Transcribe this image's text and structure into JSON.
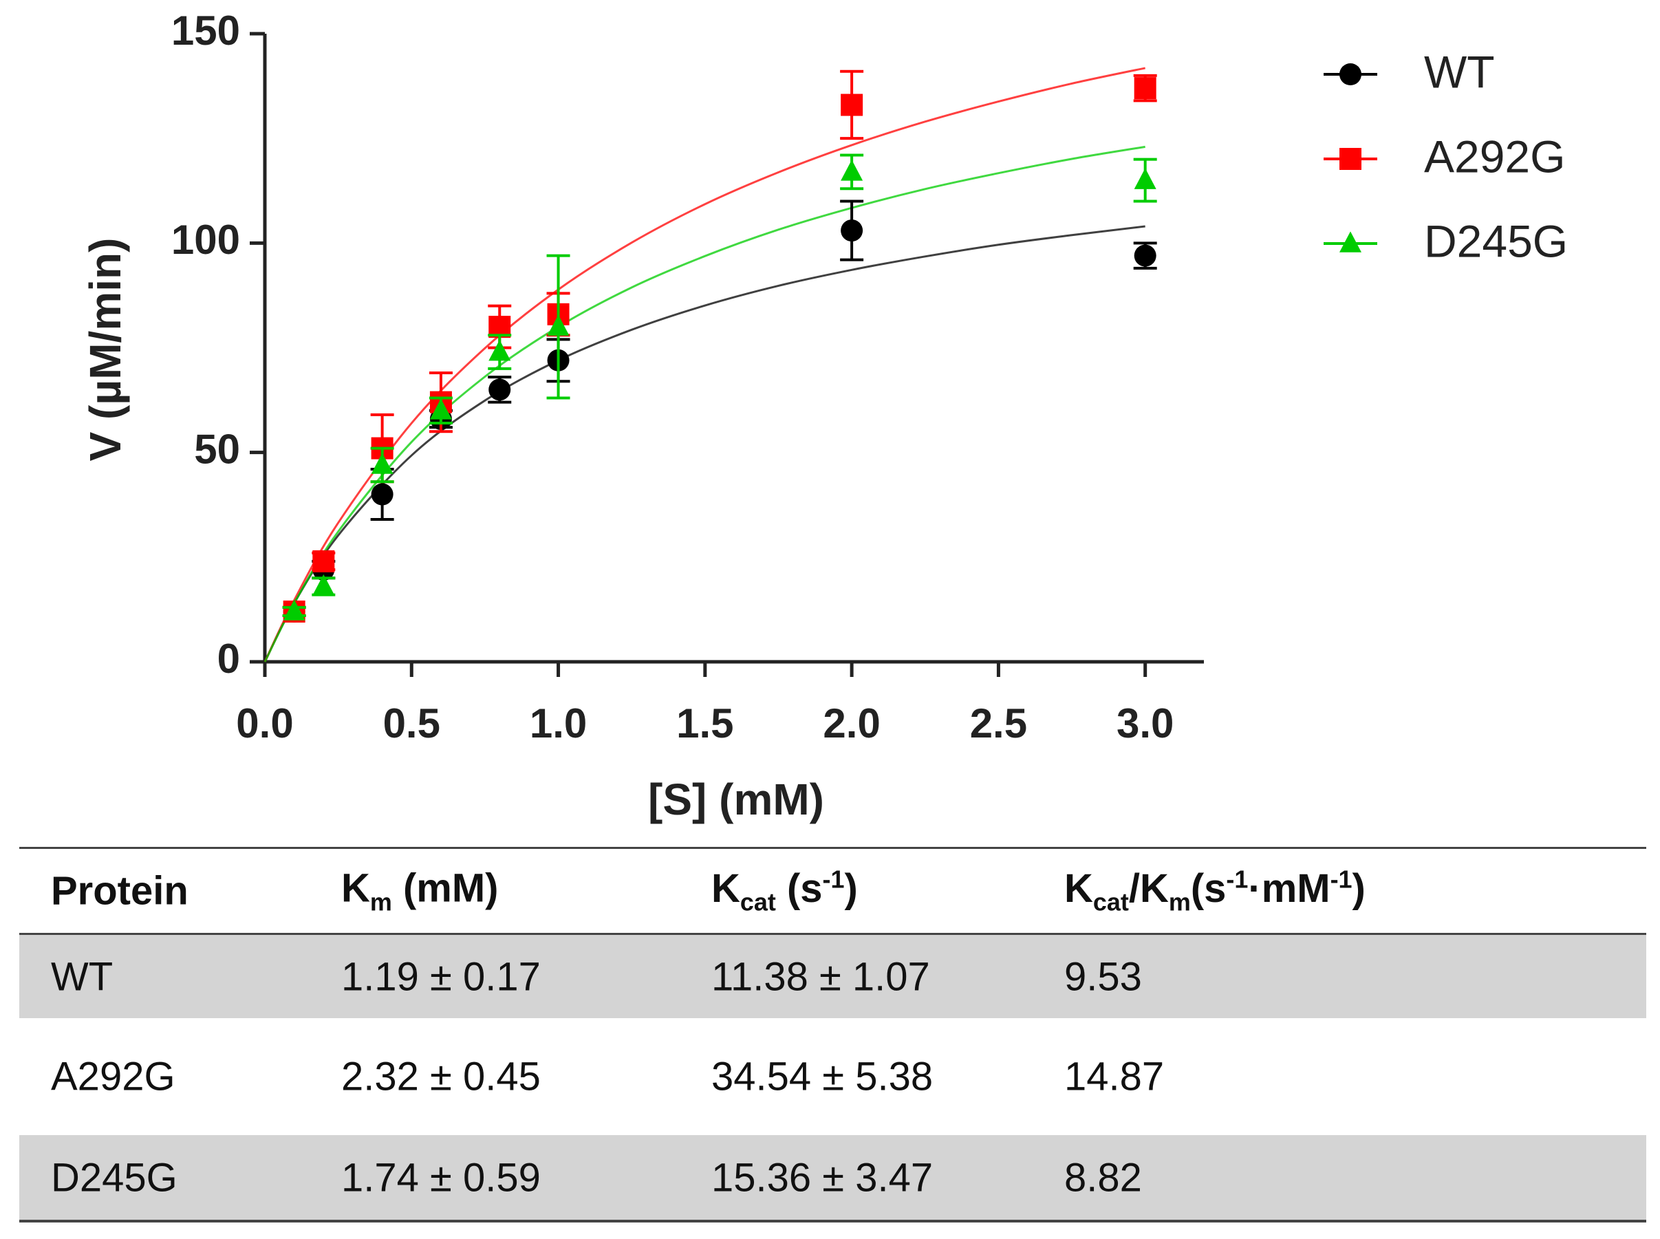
{
  "chart_data": {
    "type": "scatter",
    "x_label": "[S] (mM)",
    "y_label": "V (µM/min)",
    "x": [
      0.1,
      0.2,
      0.4,
      0.6,
      0.8,
      1.0,
      2.0,
      3.0
    ],
    "fit_x": [
      0,
      0.1,
      0.25,
      0.5,
      0.75,
      1,
      1.25,
      1.5,
      1.75,
      2,
      2.25,
      2.5,
      2.75,
      3
    ],
    "series": [
      {
        "name": "WT",
        "color": "#000000",
        "marker": "circle",
        "values": [
          12,
          22,
          40,
          58,
          65,
          72,
          103,
          97
        ],
        "errors": [
          1,
          2,
          6,
          2,
          3,
          5,
          7,
          3
        ],
        "fit": [
          0,
          14.0,
          30.2,
          49.3,
          62.4,
          72.0,
          79.3,
          85.1,
          89.8,
          93.6,
          96.8,
          99.6,
          101.9,
          104.0
        ]
      },
      {
        "name": "A292G",
        "color": "#ff0000",
        "marker": "square",
        "values": [
          12,
          24,
          51,
          62,
          80,
          83,
          133,
          137
        ],
        "errors": [
          1,
          2,
          8,
          7,
          5,
          5,
          8,
          3
        ],
        "fit": [
          0,
          14.7,
          33.2,
          57.0,
          74.9,
          88.9,
          100.1,
          109.3,
          116.9,
          123.4,
          129.0,
          133.8,
          138.1,
          141.8
        ]
      },
      {
        "name": "D245G",
        "color": "#00cc00",
        "marker": "triangle",
        "values": [
          12,
          18,
          47,
          60,
          74,
          80,
          117,
          115
        ],
        "errors": [
          1,
          2,
          4,
          3,
          4,
          17,
          4,
          5
        ],
        "fit": [
          0,
          14.0,
          31.1,
          52.5,
          68.1,
          80.0,
          89.4,
          96.9,
          103.2,
          108.4,
          112.9,
          116.7,
          120.1,
          123.0
        ]
      }
    ],
    "xlim": [
      0,
      3.2
    ],
    "ylim": [
      0,
      150
    ],
    "xticks": [
      {
        "value": 0,
        "label": "0.0"
      },
      0.5,
      {
        "value": 1,
        "label": "1.0"
      },
      1.5,
      {
        "value": 2,
        "label": "2.0"
      },
      2.5,
      {
        "value": 3,
        "label": "3.0"
      }
    ],
    "yticks": [
      0,
      50,
      100,
      150
    ],
    "grid": false,
    "legend": "upper right"
  },
  "table": {
    "columns": [
      [
        {
          "t": "Protein"
        }
      ],
      [
        {
          "t": "K"
        },
        {
          "sub": "m"
        },
        {
          "t": " (mM)"
        }
      ],
      [
        {
          "t": "K"
        },
        {
          "sub": "cat"
        },
        {
          "t": " (s"
        },
        {
          "sup": "-1"
        },
        {
          "t": ")"
        }
      ],
      [
        {
          "t": "K"
        },
        {
          "sub": "cat"
        },
        {
          "t": "/K"
        },
        {
          "sub": "m"
        },
        {
          "t": "(s"
        },
        {
          "sup": "-1"
        },
        {
          "t": "·mM"
        },
        {
          "sup": "-1"
        },
        {
          "t": ")"
        }
      ]
    ],
    "rows": [
      [
        "WT",
        "1.19 ± 0.17",
        "11.38 ± 1.07",
        "9.53"
      ],
      [
        "A292G",
        "2.32 ± 0.45",
        "34.54 ± 5.38",
        "14.87"
      ],
      [
        "D245G",
        "1.74 ± 0.59",
        "15.36 ± 3.47",
        "8.82"
      ]
    ]
  }
}
